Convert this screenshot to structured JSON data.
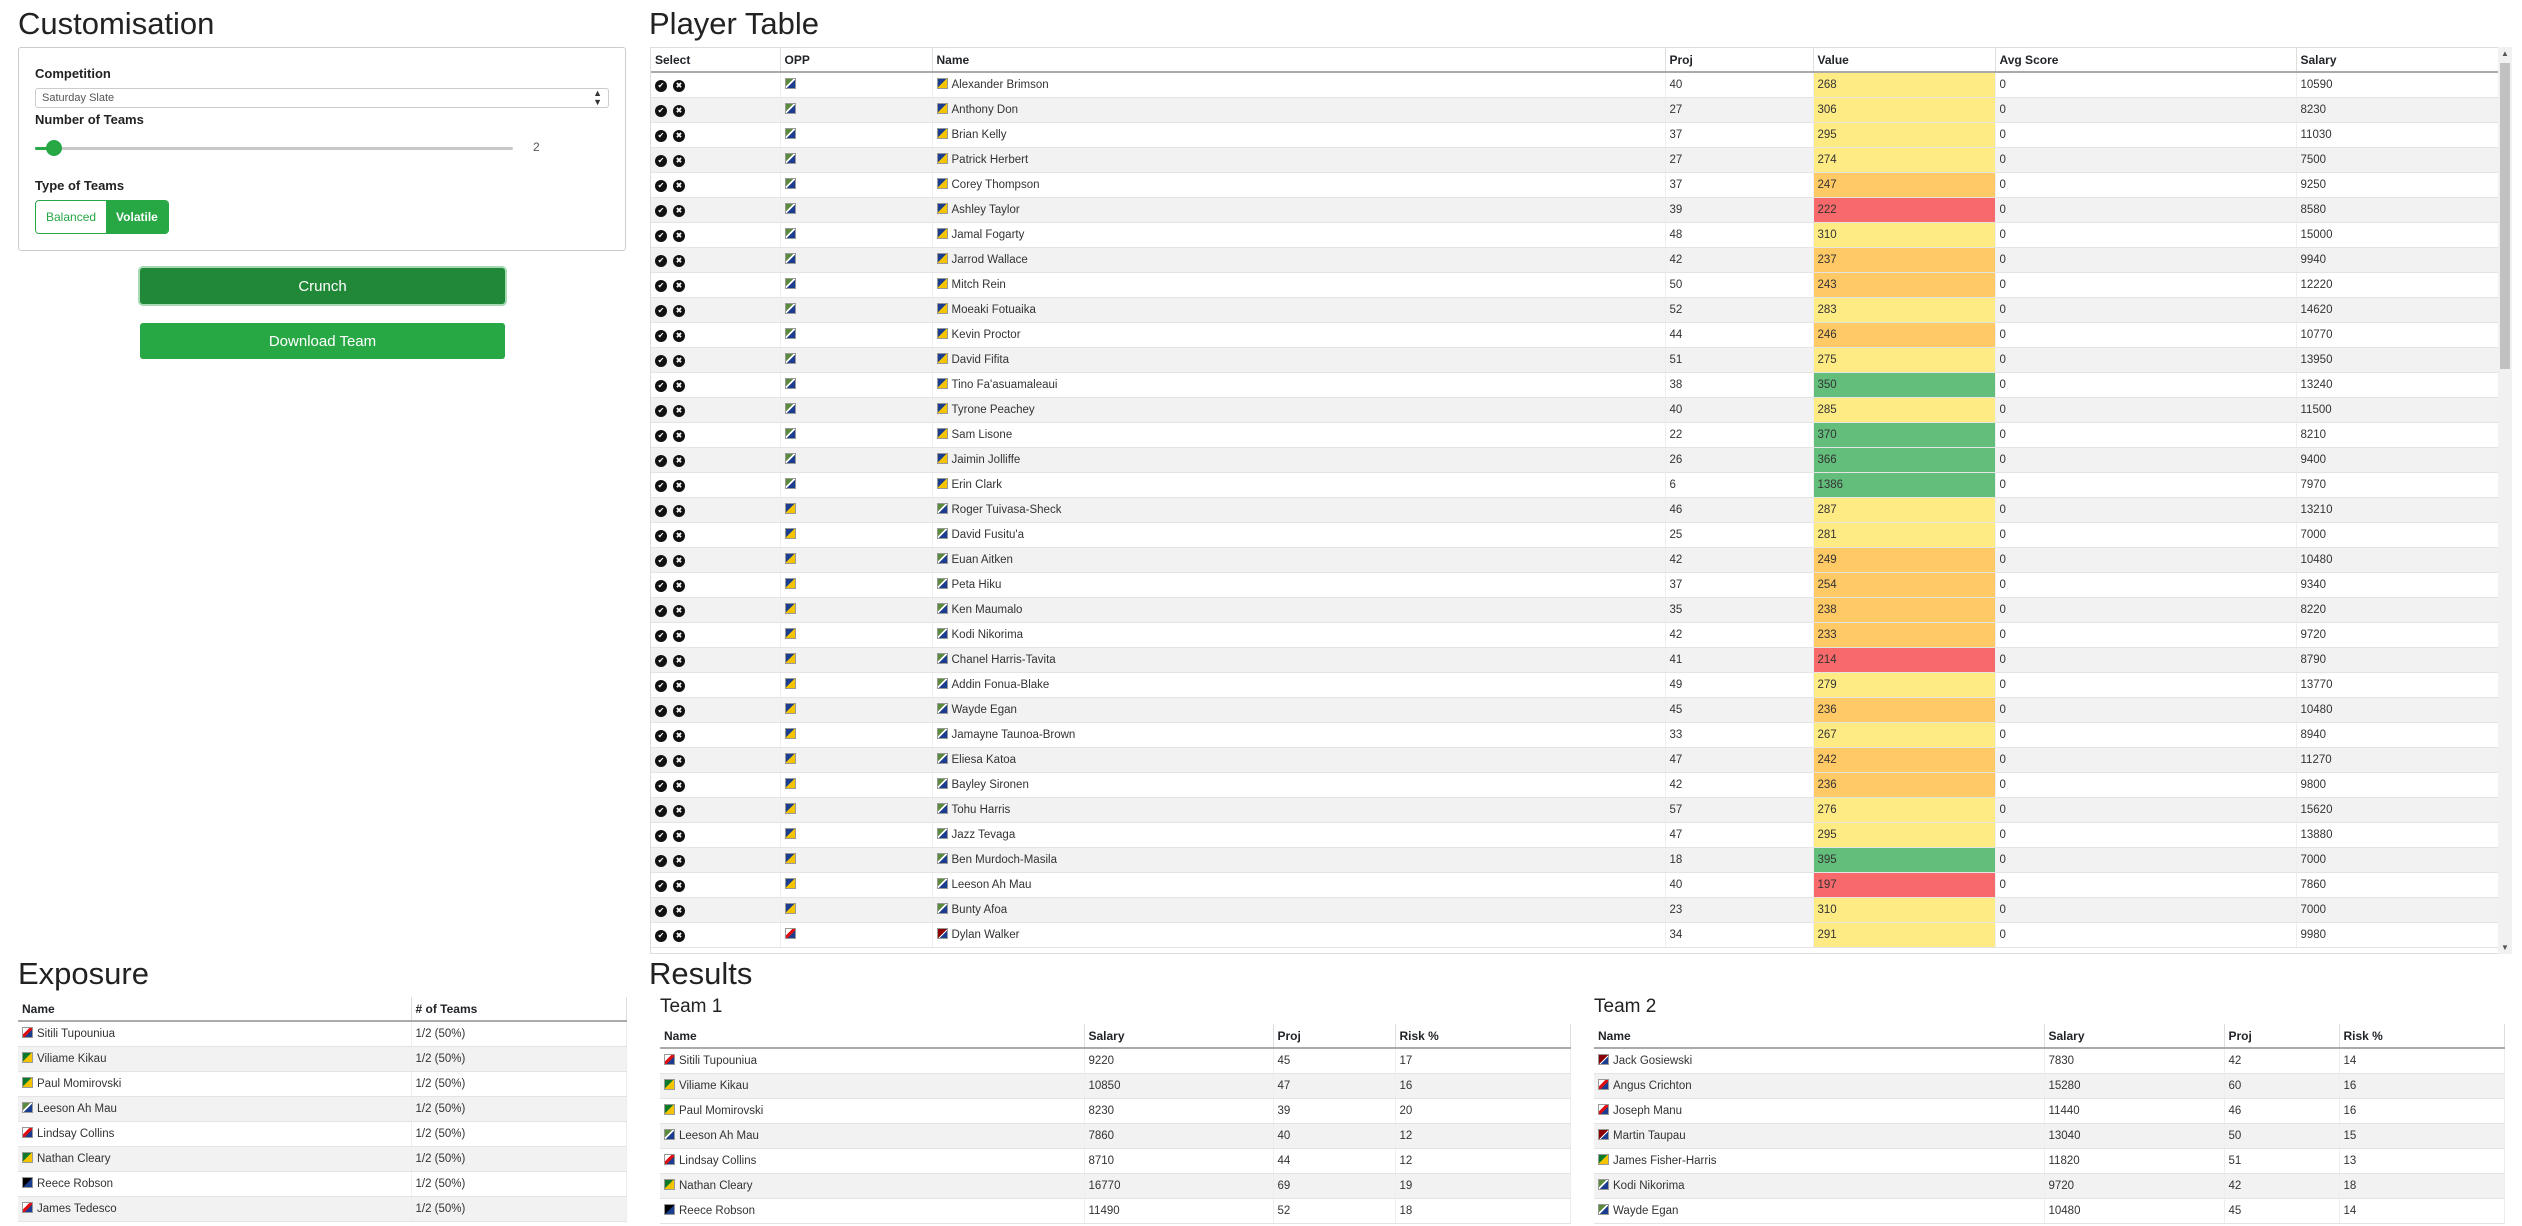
{
  "customisation": {
    "title": "Customisation",
    "competition_label": "Competition",
    "competition_value": "Saturday Slate",
    "teams_label": "Number of Teams",
    "teams_value": "2",
    "teams_fraction": 0.04,
    "type_label": "Type of Teams",
    "type_options": [
      "Balanced",
      "Volatile"
    ],
    "type_selected": "Volatile",
    "crunch_label": "Crunch",
    "download_label": "Download Team"
  },
  "player_table": {
    "title": "Player Table",
    "columns": [
      "Select",
      "OPP",
      "Name",
      "Proj",
      "Value",
      "Avg Score",
      "Salary"
    ],
    "rows": [
      {
        "name": "Alexander Brimson",
        "team": "j-gold",
        "opp": "j-navy",
        "proj": "40",
        "value": "268",
        "vclass": "v-yellow",
        "avg": "0",
        "salary": "10590"
      },
      {
        "name": "Anthony Don",
        "team": "j-gold",
        "opp": "j-navy",
        "proj": "27",
        "value": "306",
        "vclass": "v-yellow",
        "avg": "0",
        "salary": "8230"
      },
      {
        "name": "Brian Kelly",
        "team": "j-gold",
        "opp": "j-navy",
        "proj": "37",
        "value": "295",
        "vclass": "v-yellow",
        "avg": "0",
        "salary": "11030"
      },
      {
        "name": "Patrick Herbert",
        "team": "j-gold",
        "opp": "j-navy",
        "proj": "27",
        "value": "274",
        "vclass": "v-yellow",
        "avg": "0",
        "salary": "7500"
      },
      {
        "name": "Corey Thompson",
        "team": "j-gold",
        "opp": "j-navy",
        "proj": "37",
        "value": "247",
        "vclass": "v-orange",
        "avg": "0",
        "salary": "9250"
      },
      {
        "name": "Ashley Taylor",
        "team": "j-gold",
        "opp": "j-navy",
        "proj": "39",
        "value": "222",
        "vclass": "v-red",
        "avg": "0",
        "salary": "8580"
      },
      {
        "name": "Jamal Fogarty",
        "team": "j-gold",
        "opp": "j-navy",
        "proj": "48",
        "value": "310",
        "vclass": "v-yellow",
        "avg": "0",
        "salary": "15000"
      },
      {
        "name": "Jarrod Wallace",
        "team": "j-gold",
        "opp": "j-navy",
        "proj": "42",
        "value": "237",
        "vclass": "v-orange",
        "avg": "0",
        "salary": "9940"
      },
      {
        "name": "Mitch Rein",
        "team": "j-gold",
        "opp": "j-navy",
        "proj": "50",
        "value": "243",
        "vclass": "v-orange",
        "avg": "0",
        "salary": "12220"
      },
      {
        "name": "Moeaki Fotuaika",
        "team": "j-gold",
        "opp": "j-navy",
        "proj": "52",
        "value": "283",
        "vclass": "v-yellow",
        "avg": "0",
        "salary": "14620"
      },
      {
        "name": "Kevin Proctor",
        "team": "j-gold",
        "opp": "j-navy",
        "proj": "44",
        "value": "246",
        "vclass": "v-orange",
        "avg": "0",
        "salary": "10770"
      },
      {
        "name": "David Fifita",
        "team": "j-gold",
        "opp": "j-navy",
        "proj": "51",
        "value": "275",
        "vclass": "v-yellow",
        "avg": "0",
        "salary": "13950"
      },
      {
        "name": "Tino Fa'asuamaleaui",
        "team": "j-gold",
        "opp": "j-navy",
        "proj": "38",
        "value": "350",
        "vclass": "v-green",
        "avg": "0",
        "salary": "13240"
      },
      {
        "name": "Tyrone Peachey",
        "team": "j-gold",
        "opp": "j-navy",
        "proj": "40",
        "value": "285",
        "vclass": "v-yellow",
        "avg": "0",
        "salary": "11500"
      },
      {
        "name": "Sam Lisone",
        "team": "j-gold",
        "opp": "j-navy",
        "proj": "22",
        "value": "370",
        "vclass": "v-green",
        "avg": "0",
        "salary": "8210"
      },
      {
        "name": "Jaimin Jolliffe",
        "team": "j-gold",
        "opp": "j-navy",
        "proj": "26",
        "value": "366",
        "vclass": "v-green",
        "avg": "0",
        "salary": "9400"
      },
      {
        "name": "Erin Clark",
        "team": "j-gold",
        "opp": "j-navy",
        "proj": "6",
        "value": "1386",
        "vclass": "v-green",
        "avg": "0",
        "salary": "7970"
      },
      {
        "name": "Roger Tuivasa-Sheck",
        "team": "j-navy",
        "opp": "j-gold",
        "proj": "46",
        "value": "287",
        "vclass": "v-yellow",
        "avg": "0",
        "salary": "13210"
      },
      {
        "name": "David Fusitu'a",
        "team": "j-navy",
        "opp": "j-gold",
        "proj": "25",
        "value": "281",
        "vclass": "v-yellow",
        "avg": "0",
        "salary": "7000"
      },
      {
        "name": "Euan Aitken",
        "team": "j-navy",
        "opp": "j-gold",
        "proj": "42",
        "value": "249",
        "vclass": "v-orange",
        "avg": "0",
        "salary": "10480"
      },
      {
        "name": "Peta Hiku",
        "team": "j-navy",
        "opp": "j-gold",
        "proj": "37",
        "value": "254",
        "vclass": "v-orange",
        "avg": "0",
        "salary": "9340"
      },
      {
        "name": "Ken Maumalo",
        "team": "j-navy",
        "opp": "j-gold",
        "proj": "35",
        "value": "238",
        "vclass": "v-orange",
        "avg": "0",
        "salary": "8220"
      },
      {
        "name": "Kodi Nikorima",
        "team": "j-navy",
        "opp": "j-gold",
        "proj": "42",
        "value": "233",
        "vclass": "v-orange",
        "avg": "0",
        "salary": "9720"
      },
      {
        "name": "Chanel Harris-Tavita",
        "team": "j-navy",
        "opp": "j-gold",
        "proj": "41",
        "value": "214",
        "vclass": "v-red",
        "avg": "0",
        "salary": "8790"
      },
      {
        "name": "Addin Fonua-Blake",
        "team": "j-navy",
        "opp": "j-gold",
        "proj": "49",
        "value": "279",
        "vclass": "v-yellow",
        "avg": "0",
        "salary": "13770"
      },
      {
        "name": "Wayde Egan",
        "team": "j-navy",
        "opp": "j-gold",
        "proj": "45",
        "value": "236",
        "vclass": "v-orange",
        "avg": "0",
        "salary": "10480"
      },
      {
        "name": "Jamayne Taunoa-Brown",
        "team": "j-navy",
        "opp": "j-gold",
        "proj": "33",
        "value": "267",
        "vclass": "v-yellow",
        "avg": "0",
        "salary": "8940"
      },
      {
        "name": "Eliesa Katoa",
        "team": "j-navy",
        "opp": "j-gold",
        "proj": "47",
        "value": "242",
        "vclass": "v-orange",
        "avg": "0",
        "salary": "11270"
      },
      {
        "name": "Bayley Sironen",
        "team": "j-navy",
        "opp": "j-gold",
        "proj": "42",
        "value": "236",
        "vclass": "v-orange",
        "avg": "0",
        "salary": "9800"
      },
      {
        "name": "Tohu Harris",
        "team": "j-navy",
        "opp": "j-gold",
        "proj": "57",
        "value": "276",
        "vclass": "v-yellow",
        "avg": "0",
        "salary": "15620"
      },
      {
        "name": "Jazz Tevaga",
        "team": "j-navy",
        "opp": "j-gold",
        "proj": "47",
        "value": "295",
        "vclass": "v-yellow",
        "avg": "0",
        "salary": "13880"
      },
      {
        "name": "Ben Murdoch-Masila",
        "team": "j-navy",
        "opp": "j-gold",
        "proj": "18",
        "value": "395",
        "vclass": "v-green",
        "avg": "0",
        "salary": "7000"
      },
      {
        "name": "Leeson Ah Mau",
        "team": "j-navy",
        "opp": "j-gold",
        "proj": "40",
        "value": "197",
        "vclass": "v-red",
        "avg": "0",
        "salary": "7860"
      },
      {
        "name": "Bunty Afoa",
        "team": "j-navy",
        "opp": "j-gold",
        "proj": "23",
        "value": "310",
        "vclass": "v-yellow",
        "avg": "0",
        "salary": "7000"
      },
      {
        "name": "Dylan Walker",
        "team": "j-maroon",
        "opp": "j-red",
        "proj": "34",
        "value": "291",
        "vclass": "v-yellow",
        "avg": "0",
        "salary": "9980"
      }
    ]
  },
  "exposure": {
    "title": "Exposure",
    "columns": [
      "Name",
      "# of Teams"
    ],
    "rows": [
      {
        "name": "Sitili Tupouniua",
        "team": "j-red",
        "count": "1/2 (50%)"
      },
      {
        "name": "Viliame Kikau",
        "team": "j-green",
        "count": "1/2 (50%)"
      },
      {
        "name": "Paul Momirovski",
        "team": "j-green",
        "count": "1/2 (50%)"
      },
      {
        "name": "Leeson Ah Mau",
        "team": "j-navy",
        "count": "1/2 (50%)"
      },
      {
        "name": "Lindsay Collins",
        "team": "j-red",
        "count": "1/2 (50%)"
      },
      {
        "name": "Nathan Cleary",
        "team": "j-green",
        "count": "1/2 (50%)"
      },
      {
        "name": "Reece Robson",
        "team": "j-black",
        "count": "1/2 (50%)"
      },
      {
        "name": "James Tedesco",
        "team": "j-red",
        "count": "1/2 (50%)"
      }
    ]
  },
  "results": {
    "title": "Results",
    "columns": [
      "Name",
      "Salary",
      "Proj",
      "Risk %"
    ],
    "team1": {
      "title": "Team 1",
      "rows": [
        {
          "name": "Sitili Tupouniua",
          "team": "j-red",
          "salary": "9220",
          "proj": "45",
          "risk": "17"
        },
        {
          "name": "Viliame Kikau",
          "team": "j-green",
          "salary": "10850",
          "proj": "47",
          "risk": "16"
        },
        {
          "name": "Paul Momirovski",
          "team": "j-green",
          "salary": "8230",
          "proj": "39",
          "risk": "20"
        },
        {
          "name": "Leeson Ah Mau",
          "team": "j-navy",
          "salary": "7860",
          "proj": "40",
          "risk": "12"
        },
        {
          "name": "Lindsay Collins",
          "team": "j-red",
          "salary": "8710",
          "proj": "44",
          "risk": "12"
        },
        {
          "name": "Nathan Cleary",
          "team": "j-green",
          "salary": "16770",
          "proj": "69",
          "risk": "19"
        },
        {
          "name": "Reece Robson",
          "team": "j-black",
          "salary": "11490",
          "proj": "52",
          "risk": "18"
        }
      ]
    },
    "team2": {
      "title": "Team 2",
      "rows": [
        {
          "name": "Jack Gosiewski",
          "team": "j-maroon",
          "salary": "7830",
          "proj": "42",
          "risk": "14"
        },
        {
          "name": "Angus Crichton",
          "team": "j-red",
          "salary": "15280",
          "proj": "60",
          "risk": "16"
        },
        {
          "name": "Joseph Manu",
          "team": "j-red",
          "salary": "11440",
          "proj": "46",
          "risk": "16"
        },
        {
          "name": "Martin Taupau",
          "team": "j-maroon",
          "salary": "13040",
          "proj": "50",
          "risk": "15"
        },
        {
          "name": "James Fisher-Harris",
          "team": "j-green",
          "salary": "11820",
          "proj": "51",
          "risk": "13"
        },
        {
          "name": "Kodi Nikorima",
          "team": "j-navy",
          "salary": "9720",
          "proj": "42",
          "risk": "18"
        },
        {
          "name": "Wayde Egan",
          "team": "j-navy",
          "salary": "10480",
          "proj": "45",
          "risk": "14"
        }
      ]
    }
  }
}
